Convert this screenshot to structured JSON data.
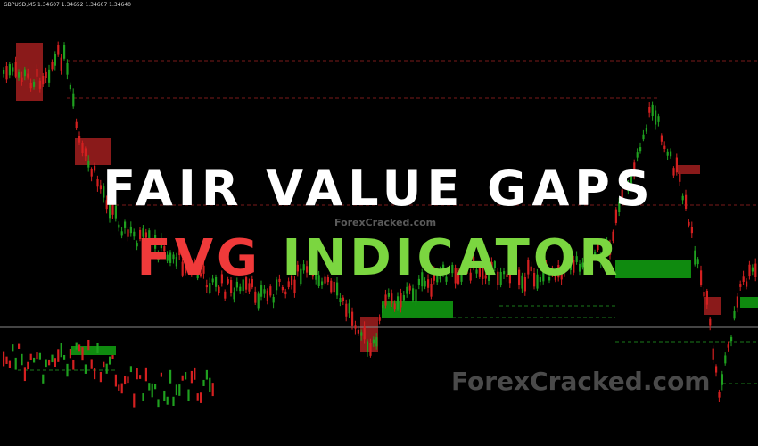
{
  "chart_header": "GBPUSD,M5  1.34607 1.34652 1.34607 1.34640",
  "title_line1": "FAIR VALUE GAPS",
  "title_line2_part1": "FVG",
  "title_line2_part2": "INDICATOR",
  "watermark_small": "ForexCracked.com",
  "watermark_large": "ForexCracked.com",
  "colors": {
    "background": "#000000",
    "bull": "#1fa01f",
    "bear": "#d42020",
    "bull_gap": "#0f8a0f",
    "bear_gap": "#8a1a1a",
    "title_red": "#f03a3a",
    "title_green": "#7bd640"
  }
}
